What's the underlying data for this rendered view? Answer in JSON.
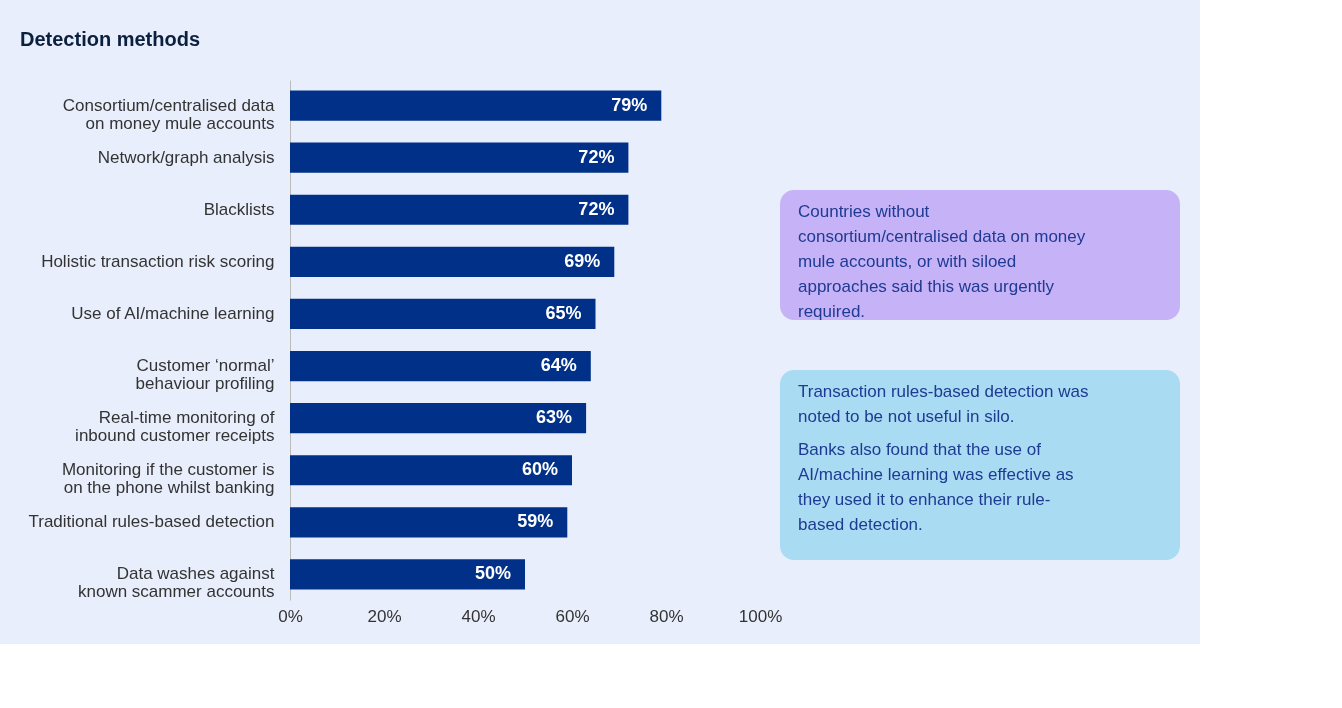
{
  "chart_data": {
    "type": "bar",
    "orientation": "horizontal",
    "title": "Detection methods",
    "categories": [
      "Consortium/centralised data on money mule accounts",
      "Network/graph analysis",
      "Blacklists",
      "Holistic transaction risk scoring",
      "Use of AI/machine learning",
      "Customer ‘normal’ behaviour profiling",
      "Real-time monitoring of inbound customer receipts",
      "Monitoring if the customer is on the phone whilst banking",
      "Traditional rules-based detection",
      "Data washes against known scammer accounts"
    ],
    "values": [
      79,
      72,
      72,
      69,
      65,
      64,
      63,
      60,
      59,
      50
    ],
    "value_labels": [
      "79%",
      "72%",
      "72%",
      "69%",
      "65%",
      "64%",
      "63%",
      "60%",
      "59%",
      "50%"
    ],
    "color": "#003087",
    "xlim": [
      0,
      100
    ],
    "xticks": [
      {
        "value": 0,
        "label": "0%"
      },
      {
        "value": 20,
        "label": "20%"
      },
      {
        "value": 40,
        "label": "40%"
      },
      {
        "value": 60,
        "label": "60%"
      },
      {
        "value": 80,
        "label": "80%"
      },
      {
        "value": 100,
        "label": "100%"
      }
    ],
    "grid": false,
    "annotations": [
      "Countries without consortium/centralised data on money mule accounts, or with siloed approaches said this was urgently required.",
      "Transaction rules-based detection was noted to be not useful in silo.",
      "Banks also found that the use of AI/machine learning was effective as they used it to enhance their rule-based detection."
    ]
  }
}
